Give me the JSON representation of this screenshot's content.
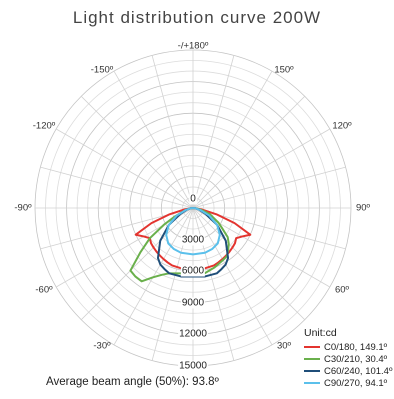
{
  "chart_data": {
    "type": "polar-line",
    "title": "Light distribution curve 200W",
    "footnote": "Average beam angle (50%): 93.8º",
    "radial_ticks": [
      "0",
      "3000",
      "6000",
      "9000",
      "12000",
      "15000"
    ],
    "radial_max": 15000,
    "angle_labels": {
      "top": "-/+180º",
      "ul150": "-150º",
      "ur150": "150º",
      "ul120": "-120º",
      "ur120": "120º",
      "ul90": "-90º",
      "ur90": "90º",
      "ll60": "-60º",
      "lr60": "60º",
      "ll30": "-30º",
      "lr30": "30º",
      "bottom": "0º"
    },
    "legend_title": "Unit:cd",
    "series": [
      {
        "name": "C0/180, 149.1º",
        "color": "#e3342f",
        "points": [
          [
            -85,
            200
          ],
          [
            -80,
            900
          ],
          [
            -75,
            2300
          ],
          [
            -70,
            4200
          ],
          [
            -65,
            6000
          ],
          [
            -60,
            5400
          ],
          [
            -55,
            5000
          ],
          [
            -50,
            5200
          ],
          [
            -45,
            5300
          ],
          [
            -40,
            5400
          ],
          [
            -35,
            5500
          ],
          [
            -30,
            5600
          ],
          [
            -25,
            5700
          ],
          [
            -20,
            5800
          ],
          [
            -10,
            5850
          ],
          [
            0,
            5900
          ],
          [
            10,
            5850
          ],
          [
            20,
            5800
          ],
          [
            25,
            5700
          ],
          [
            30,
            5600
          ],
          [
            35,
            5500
          ],
          [
            40,
            5400
          ],
          [
            45,
            5300
          ],
          [
            50,
            5200
          ],
          [
            55,
            5000
          ],
          [
            60,
            5400
          ],
          [
            65,
            6000
          ],
          [
            70,
            4200
          ],
          [
            75,
            2300
          ],
          [
            80,
            900
          ],
          [
            85,
            200
          ]
        ]
      },
      {
        "name": "C30/210, 30.4º",
        "color": "#6ab04c",
        "points": [
          [
            -85,
            200
          ],
          [
            -75,
            700
          ],
          [
            -65,
            1900
          ],
          [
            -60,
            3200
          ],
          [
            -55,
            5000
          ],
          [
            -50,
            6500
          ],
          [
            -45,
            8400
          ],
          [
            -40,
            8500
          ],
          [
            -35,
            8500
          ],
          [
            -30,
            7600
          ],
          [
            -25,
            7000
          ],
          [
            -20,
            6600
          ],
          [
            -10,
            6300
          ],
          [
            0,
            6200
          ],
          [
            10,
            6300
          ],
          [
            20,
            6000
          ],
          [
            30,
            5700
          ],
          [
            35,
            5600
          ],
          [
            40,
            5200
          ],
          [
            45,
            4800
          ],
          [
            50,
            4300
          ],
          [
            55,
            3400
          ],
          [
            60,
            2800
          ],
          [
            65,
            2100
          ],
          [
            70,
            1700
          ],
          [
            75,
            1000
          ],
          [
            80,
            500
          ],
          [
            85,
            200
          ]
        ]
      },
      {
        "name": "C60/240, 101.4º",
        "color": "#1f4e79",
        "points": [
          [
            -85,
            200
          ],
          [
            -75,
            600
          ],
          [
            -65,
            1300
          ],
          [
            -55,
            2800
          ],
          [
            -45,
            4400
          ],
          [
            -35,
            5800
          ],
          [
            -30,
            6200
          ],
          [
            -25,
            6400
          ],
          [
            -20,
            6600
          ],
          [
            -10,
            6600
          ],
          [
            0,
            6500
          ],
          [
            10,
            6600
          ],
          [
            20,
            6600
          ],
          [
            25,
            6400
          ],
          [
            30,
            6200
          ],
          [
            35,
            5800
          ],
          [
            45,
            4400
          ],
          [
            55,
            2800
          ],
          [
            65,
            1300
          ],
          [
            75,
            600
          ],
          [
            85,
            200
          ]
        ]
      },
      {
        "name": "C90/270, 94.1º",
        "color": "#5bc0eb",
        "points": [
          [
            -85,
            200
          ],
          [
            -75,
            700
          ],
          [
            -65,
            1700
          ],
          [
            -55,
            2800
          ],
          [
            -45,
            3600
          ],
          [
            -35,
            4100
          ],
          [
            -25,
            4300
          ],
          [
            -15,
            4400
          ],
          [
            0,
            4400
          ],
          [
            15,
            4400
          ],
          [
            25,
            4300
          ],
          [
            35,
            4100
          ],
          [
            45,
            3600
          ],
          [
            55,
            2800
          ],
          [
            65,
            1700
          ],
          [
            75,
            700
          ],
          [
            85,
            200
          ]
        ]
      }
    ]
  }
}
